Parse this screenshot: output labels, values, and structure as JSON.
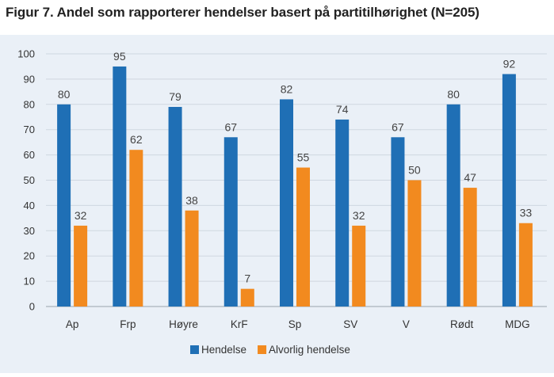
{
  "title": "Figur 7. Andel som rapporterer hendelser basert på partitilhørighet (N=205)",
  "chart_data": {
    "type": "bar",
    "categories": [
      "Ap",
      "Frp",
      "Høyre",
      "KrF",
      "Sp",
      "SV",
      "V",
      "Rødt",
      "MDG"
    ],
    "series": [
      {
        "name": "Hendelse",
        "color": "#1f6fb5",
        "values": [
          80,
          95,
          79,
          67,
          82,
          74,
          67,
          80,
          92
        ]
      },
      {
        "name": "Alvorlig hendelse",
        "color": "#f28a1f",
        "values": [
          32,
          62,
          38,
          7,
          55,
          32,
          50,
          47,
          33
        ]
      }
    ],
    "yticks": [
      0,
      10,
      20,
      30,
      40,
      50,
      60,
      70,
      80,
      90,
      100
    ],
    "ylim": [
      0,
      100
    ],
    "grid": true,
    "legend_position": "bottom-center",
    "data_labels": true
  }
}
